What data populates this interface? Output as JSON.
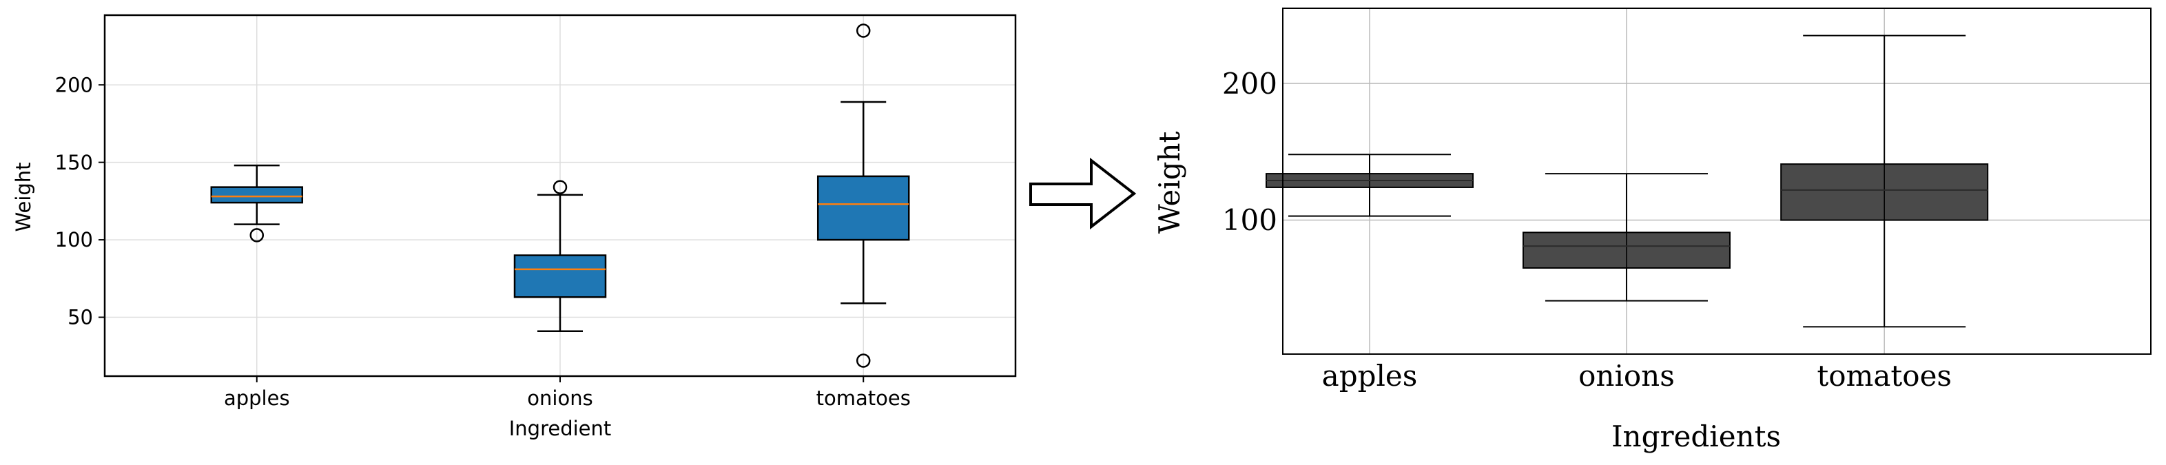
{
  "chart_data": [
    {
      "type": "box",
      "title": "",
      "xlabel": "Ingredient",
      "ylabel": "Weight",
      "categories": [
        "apples",
        "onions",
        "tomatoes"
      ],
      "yticks": [
        50,
        100,
        150,
        200
      ],
      "ylim": [
        12,
        245
      ],
      "grid": true,
      "colors": {
        "box_fill": "#1f77b4",
        "median": "#ff7f0e",
        "grid": "#dddddd",
        "axes": "#000000"
      },
      "boxes": [
        {
          "category": "apples",
          "whislo": 110,
          "q1": 124,
          "med": 128,
          "q3": 134,
          "whishi": 148,
          "fliers": [
            103
          ]
        },
        {
          "category": "onions",
          "whislo": 41,
          "q1": 63,
          "med": 81,
          "q3": 90,
          "whishi": 129,
          "fliers": [
            134
          ]
        },
        {
          "category": "tomatoes",
          "whislo": 59,
          "q1": 100,
          "med": 123,
          "q3": 141,
          "whishi": 189,
          "fliers": [
            235,
            22
          ]
        }
      ]
    },
    {
      "type": "box",
      "title": "",
      "xlabel": "Ingredients",
      "ylabel": "Weight",
      "categories": [
        "apples",
        "onions",
        "tomatoes"
      ],
      "yticks": [
        100,
        200
      ],
      "ylim": [
        2,
        255
      ],
      "grid": true,
      "colors": {
        "box_fill": "#4a4a4a",
        "median": "#2a2a2a",
        "grid": "#bbbbbb",
        "axes": "#000000"
      },
      "boxes": [
        {
          "category": "apples",
          "whislo": 103,
          "q1": 124,
          "med": 129,
          "q3": 134,
          "whishi": 148,
          "fliers": []
        },
        {
          "category": "onions",
          "whislo": 41,
          "q1": 65,
          "med": 81,
          "q3": 91,
          "whishi": 134,
          "fliers": []
        },
        {
          "category": "tomatoes",
          "whislo": 22,
          "q1": 100,
          "med": 122,
          "q3": 141,
          "whishi": 235,
          "fliers": []
        }
      ]
    }
  ],
  "arrow": {
    "icon": "right-arrow-icon"
  }
}
